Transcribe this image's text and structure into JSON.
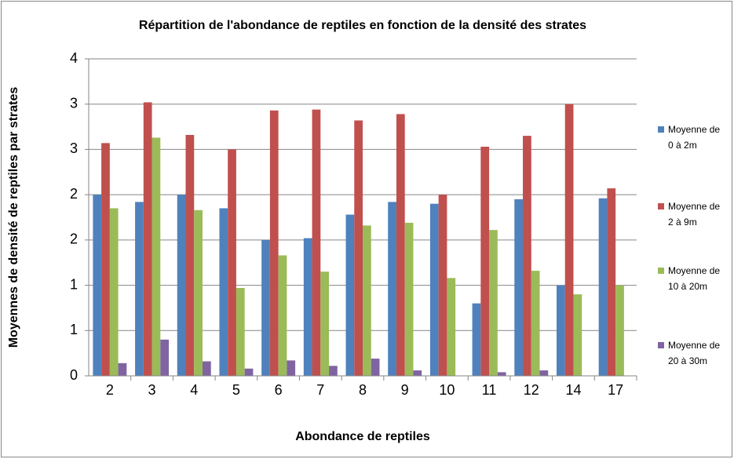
{
  "chart_data": {
    "type": "bar",
    "title": "Répartition de l'abondance de reptiles en fonction de la densité des strates",
    "x_label": "Abondance de reptiles",
    "y_label": "Moyennes de densité de reptiles par strates",
    "categories": [
      "2",
      "3",
      "4",
      "5",
      "6",
      "7",
      "8",
      "9",
      "10",
      "11",
      "12",
      "14",
      "17"
    ],
    "series": [
      {
        "name": "Moyenne de 0 à 2m",
        "color": "#4f81bd",
        "values": [
          2.0,
          1.92,
          2.0,
          1.85,
          1.5,
          1.52,
          1.78,
          1.92,
          1.9,
          0.8,
          1.95,
          1.0,
          1.96
        ]
      },
      {
        "name": "Moyenne de 2 à 9m",
        "color": "#c0504d",
        "values": [
          2.57,
          3.02,
          2.66,
          2.5,
          2.93,
          2.94,
          2.82,
          2.89,
          2.0,
          2.53,
          2.65,
          3.0,
          2.07
        ]
      },
      {
        "name": "Moyenne de 10 à 20m",
        "color": "#9bbb59",
        "values": [
          1.85,
          2.63,
          1.83,
          0.97,
          1.33,
          1.15,
          1.66,
          1.69,
          1.08,
          1.61,
          1.16,
          0.9,
          1.0
        ]
      },
      {
        "name": "Moyenne de 20 à 30m",
        "color": "#8064a2",
        "values": [
          0.14,
          0.4,
          0.16,
          0.08,
          0.17,
          0.11,
          0.19,
          0.06,
          0,
          0.04,
          0.06,
          0,
          0
        ]
      }
    ],
    "ylim": [
      0,
      3.5
    ],
    "yticks": [
      0,
      {
        "value": 0.5,
        "label": "1"
      },
      1,
      {
        "value": 1.5,
        "label": "2"
      },
      2,
      {
        "value": 2.5,
        "label": "3"
      },
      3,
      {
        "value": 3.5,
        "label": "4"
      }
    ],
    "grid": true,
    "legend": "right"
  }
}
